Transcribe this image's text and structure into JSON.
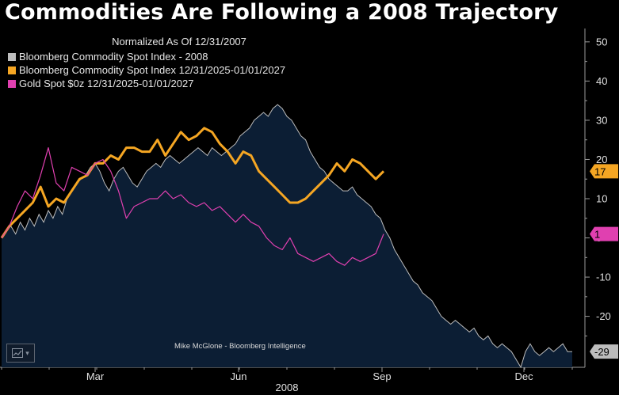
{
  "title": "Commodities Are Following a 2008 Trajectory",
  "legend": {
    "title": "Normalized As Of 12/31/2007",
    "items": [
      {
        "label": "Bloomberg Commodity Spot Index - 2008",
        "color": "#bdbdbd"
      },
      {
        "label": "Bloomberg Commodity Spot Index 12/31/2025-01/01/2027",
        "color": "#f5a623"
      },
      {
        "label": "Gold Spot $0z 12/31/2025-01/01/2027",
        "color": "#e040b0"
      }
    ]
  },
  "credit": "Mike McGlone - Bloomberg Intelligence",
  "mini_icon": "line-chart-icon",
  "colors": {
    "background": "#000000",
    "area": "#0c1e34",
    "gray": "#bdbdbd",
    "orange": "#f5a623",
    "pink": "#e040b0"
  },
  "chart_data": {
    "type": "line",
    "x_axis": {
      "ticks": [
        "Mar",
        "Jun",
        "Sep",
        "Dec"
      ],
      "year_label": "2008"
    },
    "y_axis": {
      "ticks": [
        "50",
        "40",
        "30",
        "20",
        "10",
        "0",
        "-10",
        "-20"
      ],
      "ylim": [
        -33,
        53
      ],
      "position": "right"
    },
    "last_value_badges": [
      {
        "series": "orange",
        "value": "17"
      },
      {
        "series": "pink",
        "value": "1"
      },
      {
        "series": "gray",
        "value": "-29"
      }
    ],
    "series": [
      {
        "name": "Bloomberg Commodity Spot Index - 2008",
        "key": "gray",
        "style": "area",
        "x": [
          0,
          3,
          6,
          9,
          12,
          15,
          18,
          21,
          24,
          27,
          30,
          33,
          36,
          39,
          42,
          45,
          48,
          51,
          54,
          57,
          60,
          63,
          66,
          69,
          72,
          75,
          78,
          81,
          84,
          87,
          90,
          93,
          96,
          99,
          102,
          105,
          108,
          111,
          114,
          117,
          120,
          123,
          126,
          129,
          132,
          135,
          138,
          141,
          144,
          147,
          150,
          153,
          156,
          159,
          162,
          165,
          168,
          171,
          174,
          177,
          180,
          183,
          186,
          189,
          192,
          195,
          198,
          201,
          204,
          207,
          210,
          213,
          216,
          219,
          222,
          225,
          228,
          231,
          234,
          237,
          240,
          243,
          246,
          249,
          252,
          255,
          258,
          261,
          264,
          267,
          270,
          273,
          276,
          279,
          282,
          285,
          288,
          291,
          294,
          297,
          300,
          303,
          306,
          309,
          312,
          315,
          318,
          321,
          324,
          327,
          330,
          333,
          336,
          339,
          342,
          345,
          348,
          351,
          354,
          357,
          360,
          363,
          366
        ],
        "values": [
          0,
          2,
          3,
          1,
          4,
          2,
          5,
          3,
          6,
          4,
          7,
          5,
          8,
          6,
          10,
          12,
          14,
          15,
          16,
          18,
          19,
          17,
          14,
          12,
          15,
          17,
          18,
          16,
          14,
          13,
          15,
          17,
          18,
          19,
          18,
          20,
          21,
          20,
          19,
          20,
          21,
          22,
          23,
          22,
          21,
          23,
          22,
          21,
          22,
          23,
          24,
          26,
          27,
          28,
          30,
          31,
          32,
          31,
          33,
          34,
          33,
          31,
          30,
          28,
          26,
          25,
          22,
          20,
          18,
          17,
          15,
          14,
          13,
          12,
          12,
          13,
          11,
          10,
          9,
          8,
          6,
          5,
          2,
          0,
          -3,
          -5,
          -7,
          -9,
          -11,
          -12,
          -14,
          -15,
          -16,
          -18,
          -20,
          -21,
          -22,
          -21,
          -22,
          -23,
          -24,
          -23,
          -25,
          -26,
          -25,
          -27,
          -28,
          -27,
          -28,
          -29,
          -31,
          -33,
          -29,
          -27,
          -29,
          -30,
          -29,
          -28,
          -29,
          -28,
          -27,
          -29,
          -29
        ]
      },
      {
        "name": "Bloomberg Commodity Spot Index 12/31/2025-01/01/2027",
        "key": "orange",
        "style": "line",
        "x": [
          0,
          5,
          10,
          15,
          20,
          25,
          30,
          35,
          40,
          45,
          50,
          55,
          60,
          65,
          70,
          75,
          80,
          85,
          90,
          95,
          100,
          105,
          110,
          115,
          120,
          125,
          130,
          135,
          140,
          145,
          150,
          155,
          160,
          165,
          170,
          175,
          180,
          185,
          190,
          195,
          200,
          205,
          210,
          215,
          220,
          225,
          230,
          235,
          240,
          245
        ],
        "values": [
          0,
          3,
          5,
          7,
          9,
          13,
          8,
          10,
          9,
          12,
          15,
          16,
          19,
          19,
          21,
          20,
          23,
          23,
          22,
          22,
          25,
          21,
          24,
          27,
          25,
          26,
          28,
          27,
          24,
          22,
          19,
          22,
          21,
          17,
          15,
          13,
          11,
          9,
          9,
          10,
          12,
          14,
          16,
          19,
          17,
          20,
          19,
          17,
          15,
          17
        ]
      },
      {
        "name": "Gold Spot $0z 12/31/2025-01/01/2027",
        "key": "pink",
        "style": "line",
        "x": [
          0,
          5,
          10,
          15,
          20,
          25,
          30,
          35,
          40,
          45,
          50,
          55,
          60,
          65,
          70,
          75,
          80,
          85,
          90,
          95,
          100,
          105,
          110,
          115,
          120,
          125,
          130,
          135,
          140,
          145,
          150,
          155,
          160,
          165,
          170,
          175,
          180,
          185,
          190,
          195,
          200,
          205,
          210,
          215,
          220,
          225,
          230,
          235,
          240,
          245
        ],
        "values": [
          0,
          3,
          8,
          12,
          10,
          16,
          23,
          14,
          12,
          18,
          17,
          16,
          19,
          20,
          17,
          12,
          5,
          8,
          9,
          10,
          10,
          12,
          10,
          11,
          9,
          8,
          9,
          7,
          8,
          6,
          4,
          6,
          4,
          3,
          0,
          -2,
          -3,
          0,
          -4,
          -5,
          -6,
          -5,
          -4,
          -6,
          -7,
          -5,
          -6,
          -5,
          -4,
          1
        ]
      }
    ]
  }
}
